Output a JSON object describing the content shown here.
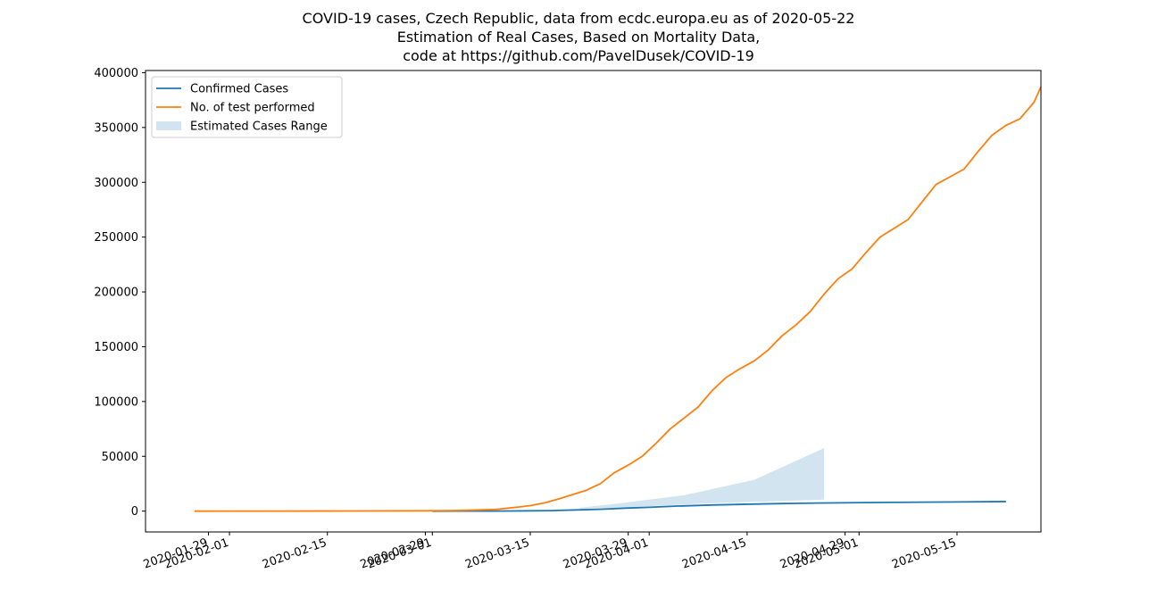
{
  "chart_data": {
    "type": "line",
    "title_lines": [
      "COVID-19 cases, Czech Republic, data from ecdc.europa.eu as of 2020-05-22",
      "Estimation of Real Cases, Based on Mortality Data,",
      "code at https://github.com/PavelDusek/COVID-19"
    ],
    "xlabel": "",
    "ylabel": "",
    "x_range": [
      "2020-01-20",
      "2020-05-27"
    ],
    "ylim": [
      -19000,
      402000
    ],
    "y_ticks": [
      0,
      50000,
      100000,
      150000,
      200000,
      250000,
      300000,
      350000,
      400000
    ],
    "y_tick_labels": [
      "0",
      "50000",
      "100000",
      "150000",
      "200000",
      "250000",
      "300000",
      "350000",
      "400000"
    ],
    "x_ticks": [
      {
        "date": "2020-01-29",
        "label": "2020-01-29"
      },
      {
        "date": "2020-02-01",
        "label": "2020-02-01"
      },
      {
        "date": "2020-02-15",
        "label": "2020-02-15"
      },
      {
        "date": "2020-02-29",
        "label": "2020-02-29"
      },
      {
        "date": "2020-03-01",
        "label": "2020-03-01"
      },
      {
        "date": "2020-03-15",
        "label": "2020-03-15"
      },
      {
        "date": "2020-03-29",
        "label": "2020-03-29"
      },
      {
        "date": "2020-04-01",
        "label": "2020-04-01"
      },
      {
        "date": "2020-04-15",
        "label": "2020-04-15"
      },
      {
        "date": "2020-04-29",
        "label": "2020-04-29"
      },
      {
        "date": "2020-05-01",
        "label": "2020-05-01"
      },
      {
        "date": "2020-05-15",
        "label": "2020-05-15"
      }
    ],
    "grid": false,
    "legend_position": "top-left",
    "colors": {
      "confirmed": "#1f77b4",
      "tests": "#ff7f0e",
      "estimated": "#1f77b4"
    },
    "series": [
      {
        "name": "Confirmed Cases",
        "kind": "line",
        "points": [
          [
            "2020-03-01",
            3
          ],
          [
            "2020-03-05",
            12
          ],
          [
            "2020-03-10",
            63
          ],
          [
            "2020-03-15",
            298
          ],
          [
            "2020-03-18",
            464
          ],
          [
            "2020-03-21",
            995
          ],
          [
            "2020-03-25",
            1654
          ],
          [
            "2020-03-29",
            2817
          ],
          [
            "2020-04-01",
            3508
          ],
          [
            "2020-04-05",
            4587
          ],
          [
            "2020-04-10",
            5569
          ],
          [
            "2020-04-15",
            6303
          ],
          [
            "2020-04-20",
            6900
          ],
          [
            "2020-04-25",
            7352
          ],
          [
            "2020-04-30",
            7682
          ],
          [
            "2020-05-05",
            7979
          ],
          [
            "2020-05-10",
            8176
          ],
          [
            "2020-05-15",
            8406
          ],
          [
            "2020-05-22",
            8721
          ]
        ]
      },
      {
        "name": "No. of test performed",
        "kind": "line",
        "points": [
          [
            "2020-01-27",
            0
          ],
          [
            "2020-02-15",
            100
          ],
          [
            "2020-02-29",
            300
          ],
          [
            "2020-03-05",
            600
          ],
          [
            "2020-03-10",
            1500
          ],
          [
            "2020-03-13",
            3500
          ],
          [
            "2020-03-15",
            5000
          ],
          [
            "2020-03-17",
            7500
          ],
          [
            "2020-03-19",
            11000
          ],
          [
            "2020-03-21",
            15000
          ],
          [
            "2020-03-23",
            19000
          ],
          [
            "2020-03-25",
            25000
          ],
          [
            "2020-03-27",
            35000
          ],
          [
            "2020-03-29",
            42000
          ],
          [
            "2020-03-31",
            50000
          ],
          [
            "2020-04-02",
            62000
          ],
          [
            "2020-04-04",
            75000
          ],
          [
            "2020-04-06",
            85000
          ],
          [
            "2020-04-08",
            95000
          ],
          [
            "2020-04-10",
            110000
          ],
          [
            "2020-04-12",
            122000
          ],
          [
            "2020-04-14",
            130000
          ],
          [
            "2020-04-16",
            137000
          ],
          [
            "2020-04-18",
            147000
          ],
          [
            "2020-04-20",
            160000
          ],
          [
            "2020-04-22",
            170000
          ],
          [
            "2020-04-24",
            182000
          ],
          [
            "2020-04-26",
            198000
          ],
          [
            "2020-04-28",
            212000
          ],
          [
            "2020-04-30",
            221000
          ],
          [
            "2020-05-02",
            236000
          ],
          [
            "2020-05-04",
            250000
          ],
          [
            "2020-05-06",
            258000
          ],
          [
            "2020-05-08",
            266000
          ],
          [
            "2020-05-10",
            282000
          ],
          [
            "2020-05-12",
            298000
          ],
          [
            "2020-05-14",
            305000
          ],
          [
            "2020-05-16",
            312000
          ],
          [
            "2020-05-18",
            328000
          ],
          [
            "2020-05-20",
            343000
          ],
          [
            "2020-05-22",
            352000
          ],
          [
            "2020-05-24",
            358000
          ],
          [
            "2020-05-26",
            373000
          ],
          [
            "2020-05-27",
            387000
          ]
        ]
      },
      {
        "name": "Estimated Cases Range",
        "kind": "area",
        "points": [
          [
            "2020-03-22",
            2000,
            3000
          ],
          [
            "2020-03-27",
            3000,
            6500
          ],
          [
            "2020-04-01",
            4500,
            10500
          ],
          [
            "2020-04-06",
            6000,
            14500
          ],
          [
            "2020-04-11",
            7500,
            21500
          ],
          [
            "2020-04-16",
            8500,
            28500
          ],
          [
            "2020-04-21",
            9500,
            43000
          ],
          [
            "2020-04-26",
            10500,
            57500
          ]
        ]
      }
    ]
  }
}
